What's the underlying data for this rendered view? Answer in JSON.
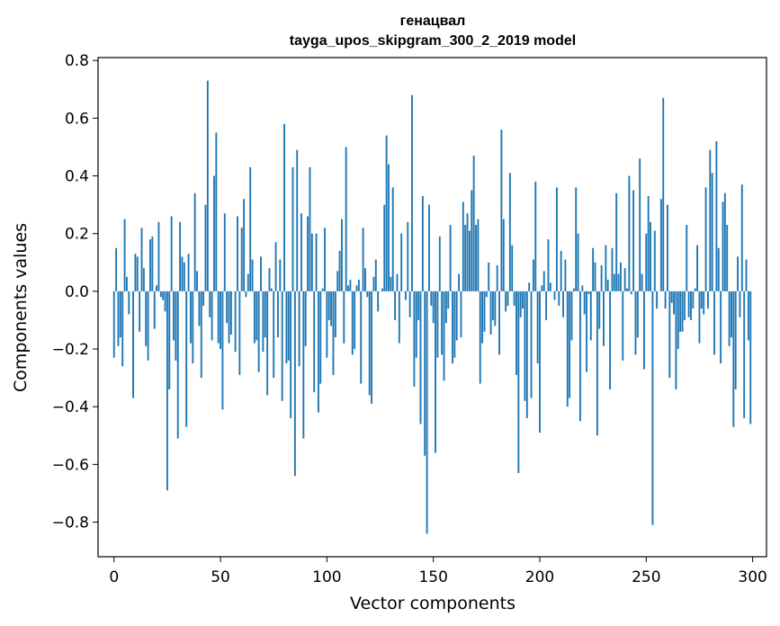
{
  "chart_data": {
    "type": "bar",
    "title": "генацвал",
    "subtitle": "tayga_upos_skipgram_300_2_2019 model",
    "xlabel": "Vector components",
    "ylabel": "Components values",
    "xlim": [
      -7.5,
      306.5
    ],
    "ylim": [
      -0.92,
      0.81
    ],
    "xticks": [
      0,
      50,
      100,
      150,
      200,
      250,
      300
    ],
    "xtick_labels": [
      "0",
      "50",
      "100",
      "150",
      "200",
      "250",
      "300"
    ],
    "yticks": [
      -0.8,
      -0.6,
      -0.4,
      -0.2,
      0.0,
      0.2,
      0.4,
      0.6,
      0.8
    ],
    "ytick_labels": [
      "−0.8",
      "−0.6",
      "−0.4",
      "−0.2",
      "0.0",
      "0.2",
      "0.4",
      "0.6",
      "0.8"
    ],
    "grid": false,
    "bar_color": "#1f77b4",
    "values": [
      -0.23,
      0.15,
      -0.19,
      -0.16,
      -0.26,
      0.25,
      0.05,
      -0.08,
      0.0,
      -0.37,
      0.13,
      0.12,
      -0.14,
      0.22,
      0.08,
      -0.19,
      -0.24,
      0.18,
      0.19,
      -0.13,
      0.02,
      0.24,
      -0.02,
      -0.03,
      -0.07,
      -0.69,
      -0.34,
      0.26,
      -0.17,
      -0.24,
      -0.51,
      0.24,
      0.12,
      0.1,
      -0.47,
      0.13,
      -0.18,
      -0.25,
      0.34,
      0.07,
      -0.12,
      -0.3,
      -0.05,
      0.3,
      0.73,
      -0.09,
      -0.17,
      0.4,
      0.55,
      -0.18,
      -0.2,
      -0.41,
      0.27,
      -0.11,
      -0.18,
      -0.15,
      0.0,
      -0.21,
      0.26,
      -0.29,
      0.22,
      0.32,
      -0.02,
      0.06,
      0.43,
      0.11,
      -0.18,
      -0.17,
      -0.28,
      0.12,
      -0.21,
      -0.16,
      -0.36,
      0.08,
      0.01,
      -0.3,
      0.17,
      -0.16,
      0.11,
      -0.38,
      0.58,
      -0.25,
      -0.24,
      -0.44,
      0.43,
      -0.64,
      0.49,
      -0.26,
      0.27,
      -0.51,
      -0.19,
      0.26,
      0.43,
      0.2,
      -0.35,
      0.2,
      -0.42,
      -0.32,
      0.01,
      0.22,
      -0.23,
      -0.1,
      -0.12,
      -0.29,
      -0.16,
      0.07,
      0.14,
      0.25,
      -0.18,
      0.5,
      0.02,
      0.04,
      -0.22,
      -0.2,
      0.02,
      0.04,
      -0.32,
      0.22,
      0.08,
      -0.02,
      -0.36,
      -0.39,
      0.05,
      0.11,
      -0.07,
      0.0,
      0.01,
      0.3,
      0.54,
      0.44,
      0.05,
      0.36,
      -0.1,
      0.06,
      -0.18,
      0.2,
      0.0,
      -0.03,
      0.24,
      -0.09,
      0.68,
      -0.33,
      -0.23,
      -0.1,
      -0.46,
      0.33,
      -0.57,
      -0.84,
      0.3,
      -0.05,
      -0.11,
      -0.56,
      -0.23,
      0.19,
      -0.22,
      -0.31,
      -0.11,
      -0.06,
      0.23,
      -0.25,
      -0.23,
      -0.17,
      0.06,
      -0.16,
      0.31,
      0.23,
      0.27,
      0.21,
      0.35,
      0.47,
      0.23,
      0.25,
      -0.32,
      -0.18,
      -0.14,
      -0.02,
      0.1,
      -0.15,
      -0.1,
      -0.12,
      0.09,
      -0.22,
      0.56,
      0.25,
      -0.07,
      -0.05,
      0.41,
      0.16,
      -0.05,
      -0.29,
      -0.63,
      -0.09,
      -0.06,
      -0.38,
      -0.44,
      0.03,
      -0.37,
      0.11,
      0.38,
      -0.25,
      -0.49,
      0.02,
      0.07,
      -0.1,
      0.18,
      0.03,
      0.0,
      -0.03,
      0.36,
      -0.05,
      0.14,
      -0.09,
      0.11,
      -0.4,
      -0.37,
      -0.17,
      0.01,
      0.36,
      0.2,
      -0.45,
      0.02,
      -0.08,
      -0.28,
      -0.01,
      -0.17,
      0.15,
      0.1,
      -0.5,
      -0.13,
      0.09,
      -0.19,
      0.16,
      0.04,
      -0.34,
      0.15,
      0.06,
      0.34,
      0.06,
      0.1,
      -0.24,
      0.08,
      0.01,
      0.4,
      -0.01,
      0.35,
      -0.22,
      -0.16,
      0.46,
      0.06,
      -0.27,
      0.2,
      0.33,
      0.24,
      -0.81,
      0.21,
      -0.06,
      0.0,
      0.32,
      0.67,
      -0.06,
      0.3,
      -0.3,
      -0.04,
      -0.08,
      -0.34,
      -0.2,
      -0.14,
      -0.14,
      -0.1,
      0.23,
      -0.09,
      -0.1,
      -0.06,
      0.01,
      0.16,
      -0.18,
      -0.06,
      -0.08,
      0.36,
      -0.06,
      0.49,
      0.41,
      -0.22,
      0.52,
      0.15,
      -0.25,
      0.31,
      0.34,
      0.23,
      -0.19,
      -0.16,
      -0.47,
      -0.34,
      0.12,
      -0.09,
      0.37,
      -0.44,
      0.11,
      -0.17,
      -0.46
    ]
  }
}
